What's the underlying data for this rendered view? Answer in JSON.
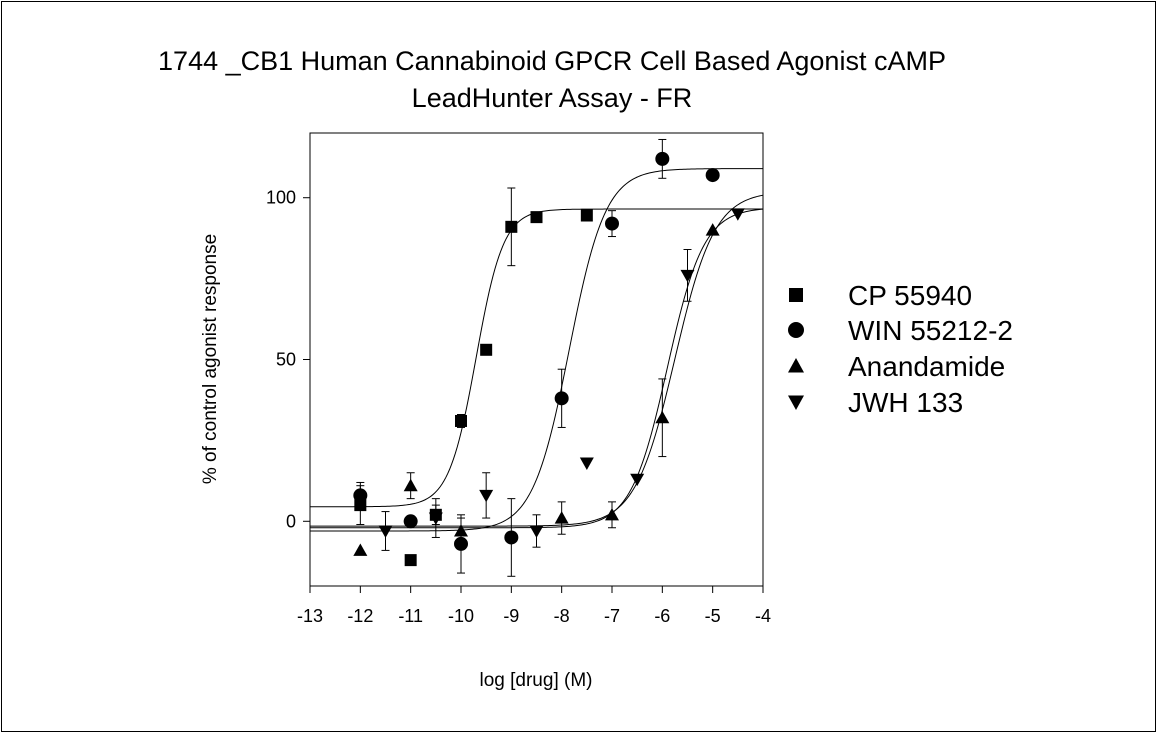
{
  "chart_data": {
    "type": "scatter",
    "title_line1": "1744 _CB1 Human Cannabinoid GPCR Cell Based Agonist cAMP",
    "title_line2": "LeadHunter Assay - FR",
    "xlabel": "log [drug] (M)",
    "ylabel": "% of control agonist response",
    "xlim": [
      -13,
      -4
    ],
    "ylim": [
      -20,
      120
    ],
    "xticks": [
      -13,
      -12,
      -11,
      -10,
      -9,
      -8,
      -7,
      -6,
      -5,
      -4
    ],
    "xtick_labels": [
      "-13",
      "-12",
      "-11",
      "-10",
      "-9",
      "-8",
      "-7",
      "-6",
      "-5",
      "-4"
    ],
    "yticks": [
      0,
      50,
      100
    ],
    "ytick_labels": [
      "0",
      "50",
      "100"
    ],
    "legend_position": "right",
    "marker_color": "#000000",
    "series": [
      {
        "name": "CP 55940",
        "marker": "square",
        "x": [
          -12,
          -11,
          -10.5,
          -10,
          -9.5,
          -9,
          -8.5,
          -7.5
        ],
        "y": [
          5,
          -12,
          2,
          31,
          53,
          91,
          94,
          94.5
        ],
        "err": [
          6,
          0,
          3,
          2,
          0,
          12,
          0,
          0
        ],
        "fit": {
          "bottom": 4.5,
          "top": 96.5,
          "logec50": -9.7,
          "hill": 1.6
        }
      },
      {
        "name": "WIN 55212-2",
        "marker": "circle",
        "x": [
          -12,
          -11,
          -10,
          -9,
          -8,
          -7,
          -6,
          -5
        ],
        "y": [
          8,
          0,
          -7,
          -5,
          38,
          92,
          112,
          107
        ],
        "err": [
          4,
          0,
          9,
          12,
          9,
          4,
          6,
          0
        ],
        "fit": {
          "bottom": -3,
          "top": 109,
          "logec50": -7.85,
          "hill": 1.2
        }
      },
      {
        "name": "Anandamide",
        "marker": "triangle-up",
        "x": [
          -12,
          -11,
          -10,
          -8,
          -7,
          -6,
          -5
        ],
        "y": [
          -9,
          11,
          -3,
          1,
          2,
          32,
          90
        ],
        "err": [
          0,
          4,
          4,
          5,
          4,
          12,
          0
        ],
        "fit": {
          "bottom": -1.5,
          "top": 102,
          "logec50": -5.75,
          "hill": 1.1
        }
      },
      {
        "name": "JWH 133",
        "marker": "triangle-down",
        "x": [
          -11.5,
          -10.5,
          -9.5,
          -8.5,
          -7.5,
          -6.5,
          -5.5,
          -4.5
        ],
        "y": [
          -3,
          1,
          8,
          -3,
          18,
          13,
          76,
          95
        ],
        "err": [
          6,
          6,
          7,
          5,
          0,
          0,
          8,
          0
        ],
        "fit": {
          "bottom": -2,
          "top": 97,
          "logec50": -5.9,
          "hill": 1.2
        }
      }
    ]
  }
}
